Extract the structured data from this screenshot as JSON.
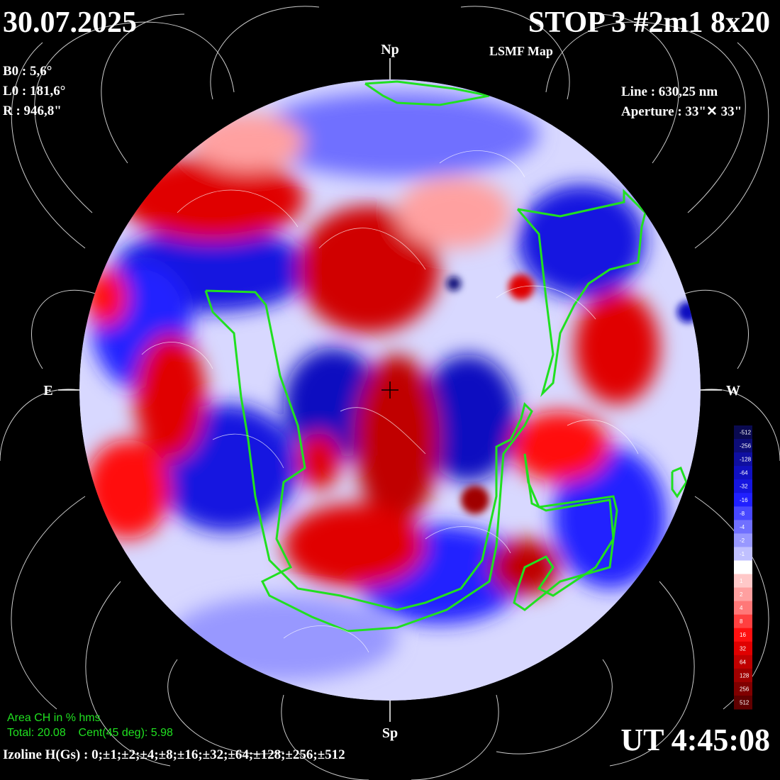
{
  "header": {
    "date": "30.07.2025",
    "title": "STOP 3 #2m1 8x20",
    "subtitle": "LSMF  Map",
    "time": "UT 4:45:08"
  },
  "params_left": [
    "B0 : 5,6°",
    "L0 : 181,6°",
    "R  : 946,8\""
  ],
  "params_right": [
    "Line :  630,25 nm",
    "Aperture : 33\"✕ 33\""
  ],
  "directions": {
    "north": "Np",
    "south": "Sp",
    "east": "E",
    "west": "W"
  },
  "coronal_hole": {
    "title": "Area CH in % hms",
    "stats": "Total: 20.08    Cent(45 deg): 5.98"
  },
  "isolines": "Izoline H(Gs) : 0;±1;±2;±4;±8;±16;±32;±64;±128;±256;±512",
  "colorbar": {
    "labels": [
      "-512",
      "-256",
      "-128",
      "-64",
      "-32",
      "-16",
      "-8",
      "-4",
      "-2",
      "-1",
      "0",
      "1",
      "2",
      "4",
      "8",
      "16",
      "32",
      "64",
      "128",
      "256",
      "512"
    ],
    "colors": [
      "#0a0a50",
      "#0d0d78",
      "#0f0fa0",
      "#1010c0",
      "#1515e0",
      "#2020ff",
      "#4848ff",
      "#7070ff",
      "#9898ff",
      "#c0c0ff",
      "#ffffff",
      "#ffc8c8",
      "#ffa0a0",
      "#ff7878",
      "#ff4040",
      "#ff1010",
      "#e00000",
      "#c00000",
      "#a00000",
      "#800000",
      "#600000"
    ]
  }
}
